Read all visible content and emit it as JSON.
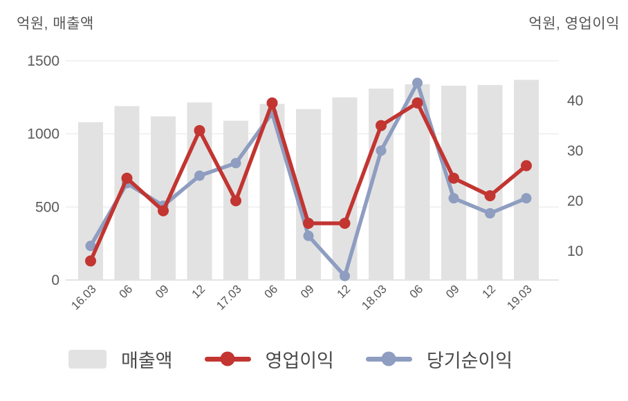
{
  "header": {
    "left_axis_title": "억원, 매출액",
    "right_axis_title": "억원, 영업이익"
  },
  "legend": {
    "items": [
      {
        "id": "revenue",
        "label": "매출액",
        "marker": "bar-swatch",
        "color": "#e2e2e2"
      },
      {
        "id": "operating-profit",
        "label": "영업이익",
        "marker": "line-dot",
        "color": "#c23531"
      },
      {
        "id": "net-income",
        "label": "당기순이익",
        "marker": "line-dot",
        "color": "#8e9dc0"
      }
    ]
  },
  "chart_data": {
    "type": "combo_bar_line",
    "title": "",
    "categories": [
      "16.03",
      "06",
      "09",
      "12",
      "17.03",
      "06",
      "09",
      "12",
      "18.03",
      "06",
      "09",
      "12",
      "19.03"
    ],
    "series": [
      {
        "id": "revenue",
        "name": "매출액",
        "type": "bar",
        "axis": "left",
        "color": "#e2e2e2",
        "values": [
          1080,
          1190,
          1120,
          1215,
          1090,
          1205,
          1170,
          1250,
          1310,
          1340,
          1330,
          1335,
          1370
        ]
      },
      {
        "id": "operating-profit",
        "name": "영업이익",
        "type": "line",
        "axis": "right",
        "color": "#c23531",
        "values": [
          8,
          24.5,
          18,
          34,
          20,
          39.5,
          15.5,
          15.5,
          35,
          39.5,
          24.5,
          21,
          27
        ]
      },
      {
        "id": "net-income",
        "name": "당기순이익",
        "type": "line",
        "axis": "right",
        "color": "#8e9dc0",
        "values": [
          11,
          23.5,
          19,
          25,
          27.5,
          37.5,
          13,
          5,
          30,
          43.5,
          20.5,
          17.5,
          20.5
        ]
      }
    ],
    "left_axis": {
      "title": "억원, 매출액",
      "unit": "억원",
      "ticks": [
        0,
        500,
        1000,
        1500
      ],
      "range": [
        0,
        1500
      ]
    },
    "right_axis": {
      "title": "억원, 영업이익",
      "unit": "억원",
      "ticks": [
        10,
        20,
        30,
        40
      ],
      "range": [
        4.2,
        47.9
      ]
    },
    "grid": true,
    "legend_position": "bottom",
    "x_label_rotation": -45
  },
  "colors": {
    "background": "#ffffff",
    "gridline": "#e6e6e6",
    "axis_line": "#c8c8c8",
    "tick_label": "#595959",
    "x_tick_label": "#555555",
    "title_text": "#555555",
    "legend_text": "#4a4a4a",
    "bar": "#e2e2e2",
    "operating_profit": "#c23531",
    "net_income": "#8e9dc0"
  }
}
